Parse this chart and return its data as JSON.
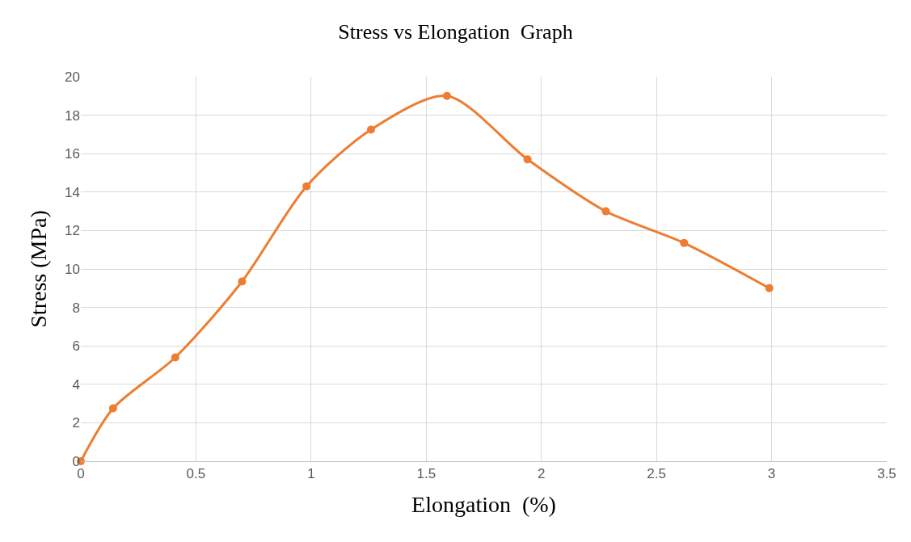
{
  "chart_data": {
    "type": "line",
    "title": "Stress vs Elongation  Graph",
    "xlabel": "Elongation  (%)",
    "ylabel": "Stress (MPa)",
    "x": [
      0,
      0.14,
      0.41,
      0.7,
      0.98,
      1.26,
      1.59,
      1.94,
      2.28,
      2.62,
      2.99
    ],
    "series": [
      {
        "color": "#ed7d31",
        "values": [
          0,
          2.75,
          5.4,
          9.35,
          14.3,
          17.25,
          19,
          15.7,
          13,
          11.35,
          9
        ]
      }
    ],
    "xlim": [
      0,
      3.5
    ],
    "xticks": [
      0,
      0.5,
      1,
      1.5,
      2,
      2.5,
      3,
      3.5
    ],
    "ylim": [
      0,
      20
    ],
    "yticks": [
      0,
      2,
      4,
      6,
      8,
      10,
      12,
      14,
      16,
      18,
      20
    ],
    "grid": true,
    "marker": "circle",
    "line_style": "solid"
  }
}
